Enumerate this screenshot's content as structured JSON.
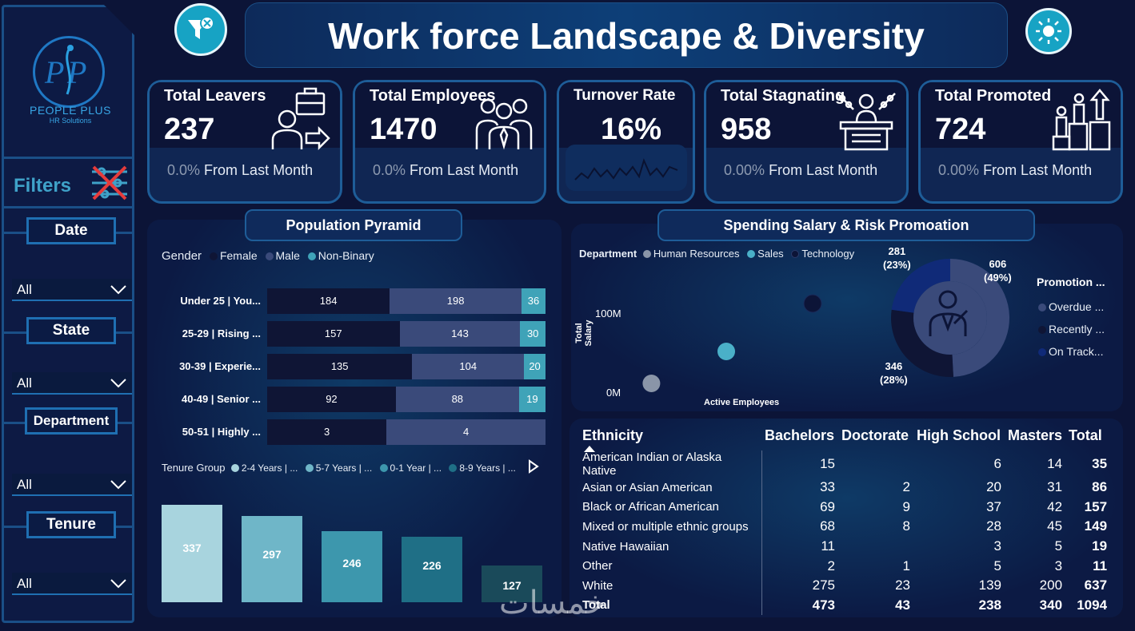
{
  "brand": {
    "name": "PEOPLE PLUS",
    "sub": "HR Solutions"
  },
  "sidebar": {
    "filters_label": "Filters",
    "filters": [
      {
        "label": "Date",
        "value": "All"
      },
      {
        "label": "State",
        "value": "All"
      },
      {
        "label": "Department",
        "value": "All"
      },
      {
        "label": "Tenure",
        "value": "All"
      }
    ]
  },
  "header": {
    "title": "Work force Landscape & Diversity",
    "left_icon": "filter-clear-icon",
    "right_icon": "sun-icon"
  },
  "kpis": [
    {
      "label": "Total Leavers",
      "value": "237",
      "pct": "0.0%",
      "change": "From Last Month",
      "icon": "leaver-icon"
    },
    {
      "label": "Total Employees",
      "value": "1470",
      "pct": "0.0%",
      "change": "From Last Month",
      "icon": "team-icon"
    },
    {
      "label": "Turnover Rate",
      "value": "16%",
      "icon": "sparkline"
    },
    {
      "label": "Total Stagnating",
      "value": "958",
      "pct": "0.00%",
      "change": "From Last Month",
      "icon": "stagnating-icon"
    },
    {
      "label": "Total Promoted",
      "value": "724",
      "pct": "0.00%",
      "change": "From Last Month",
      "icon": "promotion-icon"
    }
  ],
  "pyramid": {
    "title": "Population Pyramid",
    "legend_title": "Gender",
    "legend": [
      {
        "name": "Female",
        "color": "#0f1535"
      },
      {
        "name": "Male",
        "color": "#3a4a7a"
      },
      {
        "name": "Non-Binary",
        "color": "#3fa3b8"
      }
    ],
    "rows": [
      {
        "label": "Under 25 | You...",
        "female": "184",
        "male": "198",
        "nb": "36"
      },
      {
        "label": "25-29 | Rising ...",
        "female": "157",
        "male": "143",
        "nb": "30"
      },
      {
        "label": "30-39 | Experie...",
        "female": "135",
        "male": "104",
        "nb": "20"
      },
      {
        "label": "40-49 | Senior ...",
        "female": "92",
        "male": "88",
        "nb": "19"
      },
      {
        "label": "50-51 | Highly ...",
        "female": "3",
        "male": "4",
        "nb": ""
      }
    ]
  },
  "tenure": {
    "legend_title": "Tenure Group",
    "legend": [
      {
        "name": "2-4 Years | ...",
        "color": "#a8d4de"
      },
      {
        "name": "5-7 Years | ...",
        "color": "#6fb6c8"
      },
      {
        "name": "0-1 Year | ...",
        "color": "#3d97ad"
      },
      {
        "name": "8-9 Years | ...",
        "color": "#1f6f86"
      }
    ],
    "bars": [
      {
        "value": "337",
        "color": "#a8d4de"
      },
      {
        "value": "297",
        "color": "#6fb6c8"
      },
      {
        "value": "246",
        "color": "#3d97ad"
      },
      {
        "value": "226",
        "color": "#1f6f86"
      },
      {
        "value": "127",
        "color": "#1a4a5a"
      }
    ]
  },
  "spending": {
    "title": "Spending Salary & Risk Promoation",
    "legend_title": "Department",
    "legend": [
      {
        "name": "Human Resources",
        "color": "#8a95a8"
      },
      {
        "name": "Sales",
        "color": "#4ab0c8"
      },
      {
        "name": "Technology",
        "color": "#0c1437"
      }
    ],
    "y_label": "Total Salary",
    "x_label": "Active Employees",
    "y_ticks": [
      "100M",
      "0M"
    ],
    "donut_legend_title": "Promotion ...",
    "donut_legend": [
      {
        "name": "Overdue ...",
        "color": "#3a4a7a"
      },
      {
        "name": "Recently ...",
        "color": "#0f1535"
      },
      {
        "name": "On Track...",
        "color": "#102a78"
      }
    ],
    "donut_labels": [
      {
        "value": "606",
        "pct": "(49%)"
      },
      {
        "value": "346",
        "pct": "(28%)"
      },
      {
        "value": "281",
        "pct": "(23%)"
      }
    ]
  },
  "chart_data": [
    {
      "type": "bar",
      "title": "Population Pyramid",
      "categories": [
        "Under 25 | You...",
        "25-29 | Rising ...",
        "30-39 | Experie...",
        "40-49 | Senior ...",
        "50-51 | Highly ..."
      ],
      "series": [
        {
          "name": "Female",
          "values": [
            184,
            157,
            135,
            92,
            3
          ]
        },
        {
          "name": "Male",
          "values": [
            198,
            143,
            104,
            88,
            4
          ]
        },
        {
          "name": "Non-Binary",
          "values": [
            36,
            30,
            20,
            19,
            0
          ]
        }
      ]
    },
    {
      "type": "bar",
      "categories": [
        "2-4 Years | ...",
        "5-7 Years | ...",
        "0-1 Year | ...",
        "8-9 Years | ...",
        ""
      ],
      "values": [
        337,
        297,
        246,
        226,
        127
      ]
    },
    {
      "type": "scatter",
      "xlabel": "Active Employees",
      "ylabel": "Total Salary",
      "series": [
        {
          "name": "Technology",
          "values": [
            {
              "x": 900,
              "y": 105000000
            }
          ]
        },
        {
          "name": "Sales",
          "values": [
            {
              "x": 450,
              "y": 45000000
            }
          ]
        },
        {
          "name": "Human Resources",
          "values": [
            {
              "x": 60,
              "y": 5000000
            }
          ]
        }
      ]
    },
    {
      "type": "pie",
      "categories": [
        "Overdue ...",
        "Recently ...",
        "On Track..."
      ],
      "values": [
        606,
        346,
        281
      ]
    }
  ],
  "ethnicity": {
    "headers": [
      "Ethnicity",
      "Bachelors",
      "Doctorate",
      "High School",
      "Masters",
      "Total"
    ],
    "rows": [
      [
        "American Indian or Alaska Native",
        "15",
        "",
        "6",
        "14",
        "35"
      ],
      [
        "Asian or Asian American",
        "33",
        "2",
        "20",
        "31",
        "86"
      ],
      [
        "Black or African American",
        "69",
        "9",
        "37",
        "42",
        "157"
      ],
      [
        "Mixed or multiple ethnic groups",
        "68",
        "8",
        "28",
        "45",
        "149"
      ],
      [
        "Native Hawaiian",
        "11",
        "",
        "3",
        "5",
        "19"
      ],
      [
        "Other",
        "2",
        "1",
        "5",
        "3",
        "11"
      ],
      [
        "White",
        "275",
        "23",
        "139",
        "200",
        "637"
      ]
    ],
    "total": [
      "Total",
      "473",
      "43",
      "238",
      "340",
      "1094"
    ]
  },
  "watermark": "خمسات"
}
